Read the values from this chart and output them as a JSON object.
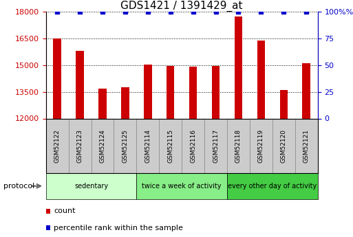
{
  "title": "GDS1421 / 1391429_at",
  "samples": [
    "GSM52122",
    "GSM52123",
    "GSM52124",
    "GSM52125",
    "GSM52114",
    "GSM52115",
    "GSM52116",
    "GSM52117",
    "GSM52118",
    "GSM52119",
    "GSM52120",
    "GSM52121"
  ],
  "counts": [
    16500,
    15800,
    13700,
    13750,
    15050,
    14950,
    14900,
    14950,
    17750,
    16400,
    13600,
    15100
  ],
  "percentile_ranks": [
    100,
    100,
    100,
    100,
    100,
    100,
    100,
    100,
    100,
    100,
    100,
    100
  ],
  "ylim_left": [
    12000,
    18000
  ],
  "ylim_right": [
    0,
    100
  ],
  "yticks_left": [
    12000,
    13500,
    15000,
    16500,
    18000
  ],
  "yticks_right": [
    0,
    25,
    50,
    75,
    100
  ],
  "bar_color": "#CC0000",
  "percentile_color": "#0000CC",
  "groups": [
    {
      "label": "sedentary",
      "indices": [
        0,
        4
      ],
      "color": "#ccffcc"
    },
    {
      "label": "twice a week of activity",
      "indices": [
        4,
        8
      ],
      "color": "#88ee88"
    },
    {
      "label": "every other day of activity",
      "indices": [
        8,
        12
      ],
      "color": "#44cc44"
    }
  ],
  "protocol_label": "protocol",
  "legend_count_label": "count",
  "legend_percentile_label": "percentile rank within the sample",
  "bar_width": 0.35,
  "label_fontsize": 7,
  "title_fontsize": 11,
  "label_box_color": "#cccccc",
  "label_box_edge": "#888888"
}
